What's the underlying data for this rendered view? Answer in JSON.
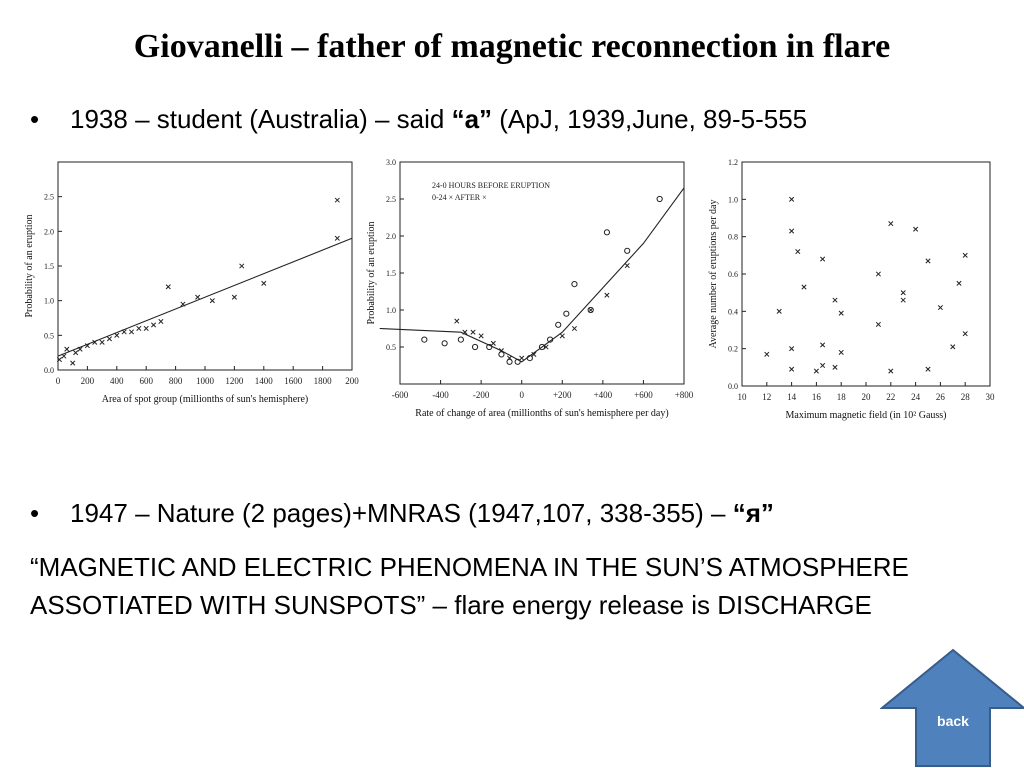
{
  "title": "Giovanelli – father of magnetic reconnection in flare",
  "bullet1": {
    "bullet": "•",
    "pre": "1938 – student (Australia) – said ",
    "bold": "“a”",
    "post": "  (ApJ, 1939,June, 89-5-555"
  },
  "bullet2": {
    "bullet": "•",
    "pre": "1947 – Nature (2 pages)+MNRAS (1947,107, 338-355) – ",
    "bold": "“я”"
  },
  "paragraph": "“MAGNETIC AND ELECTRIC PHENOMENA  IN THE SUN’S ATMOSPHERE ASSOTIATED WITH SUNSPOTS” – flare energy release is DISCHARGE",
  "back_button": {
    "label": "back",
    "color": "#4f81bd"
  },
  "chart_data": [
    {
      "type": "scatter",
      "xlabel": "Area of spot group (millionths of sun's hemisphere)",
      "ylabel": "Probability of an eruption",
      "xlim": [
        0,
        2000
      ],
      "ylim": [
        0,
        3
      ],
      "x_ticks": [
        "0",
        "200",
        "400",
        "600",
        "800",
        "1000",
        "1200",
        "1400",
        "1600",
        "1800",
        "200"
      ],
      "y_ticks": [
        "0.0",
        "0.5",
        "1.0",
        "1.5",
        "2.0",
        "2.5"
      ],
      "points": [
        [
          10,
          0.15
        ],
        [
          40,
          0.2
        ],
        [
          60,
          0.3
        ],
        [
          100,
          0.1
        ],
        [
          120,
          0.25
        ],
        [
          150,
          0.3
        ],
        [
          200,
          0.35
        ],
        [
          250,
          0.4
        ],
        [
          300,
          0.4
        ],
        [
          350,
          0.45
        ],
        [
          400,
          0.5
        ],
        [
          450,
          0.55
        ],
        [
          500,
          0.55
        ],
        [
          550,
          0.6
        ],
        [
          600,
          0.6
        ],
        [
          650,
          0.65
        ],
        [
          700,
          0.7
        ],
        [
          750,
          1.2
        ],
        [
          850,
          0.95
        ],
        [
          950,
          1.05
        ],
        [
          1050,
          1.0
        ],
        [
          1200,
          1.05
        ],
        [
          1250,
          1.5
        ],
        [
          1400,
          1.25
        ],
        [
          1900,
          2.45
        ],
        [
          1900,
          1.9
        ]
      ],
      "trend": [
        [
          0,
          0.2
        ],
        [
          2000,
          1.9
        ]
      ]
    },
    {
      "type": "scatter",
      "xlabel": "Rate of change of area (millionths of sun's hemisphere per day)",
      "ylabel": "Probability of an eruption",
      "xlim": [
        -600,
        800
      ],
      "ylim": [
        0,
        3
      ],
      "x_ticks": [
        "-600",
        "-400",
        "-200",
        "0",
        "+200",
        "+400",
        "+600",
        "+800"
      ],
      "y_ticks": [
        "0.5",
        "1.0",
        "1.5",
        "2.0",
        "2.5",
        "3.0"
      ],
      "legend": [
        "24-0  HOURS BEFORE ERUPTION",
        "0-24   ×   AFTER   ×"
      ],
      "series": [
        {
          "name": "24-0 HOURS BEFORE ERUPTION",
          "marker": "o",
          "points": [
            [
              -480,
              0.6
            ],
            [
              -380,
              0.55
            ],
            [
              -300,
              0.6
            ],
            [
              -230,
              0.5
            ],
            [
              -160,
              0.5
            ],
            [
              -100,
              0.4
            ],
            [
              -60,
              0.3
            ],
            [
              -20,
              0.3
            ],
            [
              40,
              0.35
            ],
            [
              100,
              0.5
            ],
            [
              140,
              0.6
            ],
            [
              180,
              0.8
            ],
            [
              220,
              0.95
            ],
            [
              260,
              1.35
            ],
            [
              340,
              1.0
            ],
            [
              420,
              2.05
            ],
            [
              520,
              1.8
            ],
            [
              680,
              2.5
            ]
          ]
        },
        {
          "name": "0-24 AFTER",
          "marker": "x",
          "points": [
            [
              -320,
              0.85
            ],
            [
              -280,
              0.7
            ],
            [
              -240,
              0.7
            ],
            [
              -200,
              0.65
            ],
            [
              -140,
              0.55
            ],
            [
              -100,
              0.45
            ],
            [
              -60,
              0.35
            ],
            [
              0,
              0.35
            ],
            [
              60,
              0.4
            ],
            [
              120,
              0.5
            ],
            [
              200,
              0.65
            ],
            [
              260,
              0.75
            ],
            [
              340,
              1.0
            ],
            [
              420,
              1.2
            ],
            [
              520,
              1.6
            ]
          ]
        }
      ],
      "trend": [
        [
          -700,
          0.75
        ],
        [
          -300,
          0.7
        ],
        [
          -100,
          0.45
        ],
        [
          0,
          0.3
        ],
        [
          200,
          0.7
        ],
        [
          400,
          1.3
        ],
        [
          600,
          1.9
        ],
        [
          800,
          2.65
        ]
      ]
    },
    {
      "type": "scatter",
      "xlabel": "Maximum magnetic field (in 10² Gauss)",
      "ylabel": "Average number of eruptions per day",
      "xlim": [
        10,
        30
      ],
      "ylim": [
        0,
        1.2
      ],
      "x_ticks": [
        "10",
        "12",
        "14",
        "16",
        "18",
        "20",
        "22",
        "24",
        "26",
        "28",
        "30"
      ],
      "y_ticks": [
        "0.0",
        "0.2",
        "0.4",
        "0.6",
        "0.8",
        "1.0",
        "1.2"
      ],
      "points": [
        [
          12,
          0.17
        ],
        [
          13,
          0.4
        ],
        [
          14,
          1.0
        ],
        [
          14,
          0.83
        ],
        [
          14,
          0.2
        ],
        [
          14,
          0.09
        ],
        [
          14.5,
          0.72
        ],
        [
          15,
          0.53
        ],
        [
          16,
          0.08
        ],
        [
          16.5,
          0.68
        ],
        [
          16.5,
          0.22
        ],
        [
          16.5,
          0.11
        ],
        [
          17.5,
          0.46
        ],
        [
          17.5,
          0.1
        ],
        [
          18,
          0.39
        ],
        [
          18,
          0.18
        ],
        [
          21,
          0.6
        ],
        [
          21,
          0.33
        ],
        [
          22,
          0.87
        ],
        [
          22,
          0.08
        ],
        [
          23,
          0.5
        ],
        [
          23,
          0.46
        ],
        [
          24,
          0.84
        ],
        [
          25,
          0.67
        ],
        [
          25,
          0.09
        ],
        [
          26,
          0.42
        ],
        [
          27,
          0.21
        ],
        [
          27.5,
          0.55
        ],
        [
          28,
          0.28
        ],
        [
          28,
          0.7
        ]
      ]
    }
  ]
}
